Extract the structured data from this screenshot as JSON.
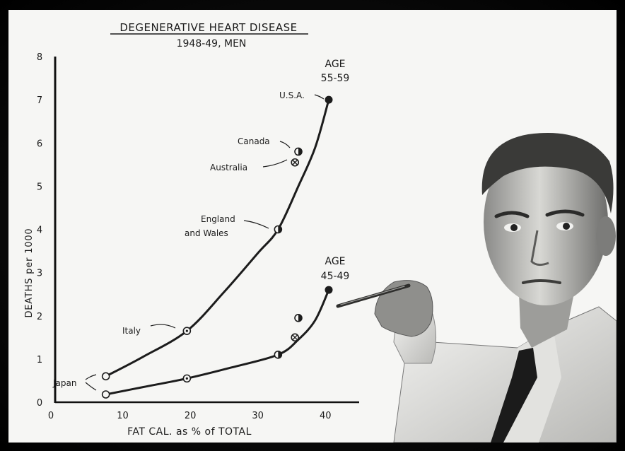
{
  "chart_data": {
    "type": "line",
    "title": "DEGENERATIVE HEART DISEASE",
    "subtitle": "1948-49, MEN",
    "xlabel": "FAT CAL. as % of TOTAL",
    "ylabel": "DEATHS per 1000",
    "xlim": [
      0,
      45
    ],
    "ylim": [
      0,
      8
    ],
    "x_ticks": [
      "0",
      "10",
      "20",
      "30",
      "40"
    ],
    "y_ticks": [
      "0",
      "1",
      "2",
      "3",
      "4",
      "5",
      "6",
      "7",
      "8"
    ],
    "grid": false,
    "series": [
      {
        "name": "AGE 55-59",
        "label_lines": [
          "AGE",
          "55-59"
        ],
        "points": [
          {
            "x": 7.5,
            "y": 0.6,
            "marker": "open",
            "country": "Japan"
          },
          {
            "x": 19.5,
            "y": 1.65,
            "marker": "dot",
            "country": "Italy"
          },
          {
            "x": 33,
            "y": 4.0,
            "marker": "half",
            "country": "England and Wales"
          },
          {
            "x": 35.5,
            "y": 5.55,
            "marker": "cross",
            "country": "Australia"
          },
          {
            "x": 36,
            "y": 5.8,
            "marker": "half",
            "country": "Canada"
          },
          {
            "x": 40.5,
            "y": 7.0,
            "marker": "filled",
            "country": "U.S.A."
          }
        ],
        "curve": [
          [
            7.5,
            0.6
          ],
          [
            13,
            1.05
          ],
          [
            19.5,
            1.65
          ],
          [
            25,
            2.55
          ],
          [
            30,
            3.45
          ],
          [
            33,
            4.0
          ],
          [
            36,
            5.0
          ],
          [
            38.5,
            5.9
          ],
          [
            40.5,
            7.0
          ]
        ]
      },
      {
        "name": "AGE 45-49",
        "label_lines": [
          "AGE",
          "45-49"
        ],
        "points": [
          {
            "x": 7.5,
            "y": 0.18,
            "marker": "open",
            "country": "Japan"
          },
          {
            "x": 19.5,
            "y": 0.55,
            "marker": "dot",
            "country": "Italy"
          },
          {
            "x": 33,
            "y": 1.1,
            "marker": "half",
            "country": "England and Wales"
          },
          {
            "x": 35.5,
            "y": 1.5,
            "marker": "cross",
            "country": "Australia"
          },
          {
            "x": 36,
            "y": 1.95,
            "marker": "half",
            "country": "Canada"
          },
          {
            "x": 40.5,
            "y": 2.6,
            "marker": "filled",
            "country": "U.S.A."
          }
        ],
        "curve": [
          [
            7.5,
            0.18
          ],
          [
            13,
            0.35
          ],
          [
            19.5,
            0.55
          ],
          [
            26,
            0.8
          ],
          [
            33,
            1.1
          ],
          [
            36,
            1.45
          ],
          [
            38.5,
            1.9
          ],
          [
            40.5,
            2.6
          ]
        ]
      }
    ],
    "annotations": [
      {
        "text": "Japan"
      },
      {
        "text": "Italy"
      },
      {
        "text": "England"
      },
      {
        "text": "and Wales"
      },
      {
        "text": "Australia"
      },
      {
        "text": "Canada"
      },
      {
        "text": "U.S.A."
      }
    ]
  },
  "colors": {
    "ink": "#1c1c1c",
    "paper": "#f6f6f4",
    "frame": "#000000"
  },
  "photo": {
    "description_icon": "man-in-lab-coat-pointing"
  }
}
